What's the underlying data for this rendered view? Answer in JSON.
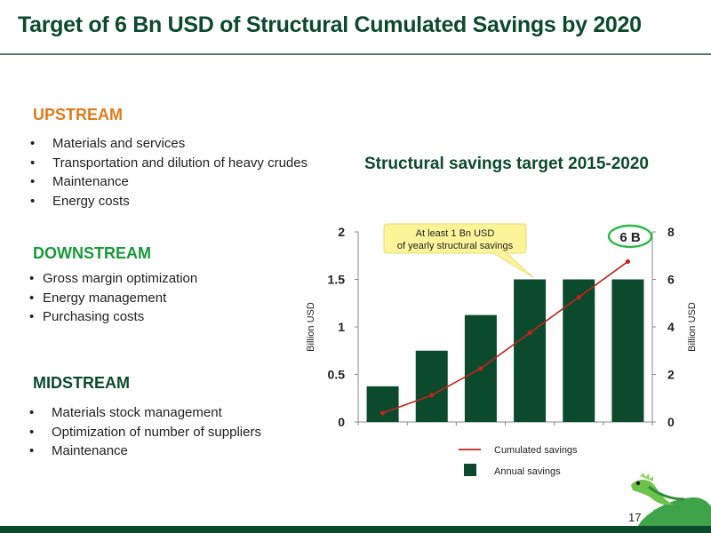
{
  "header": {
    "title": "Target of 6 Bn USD of Structural Cumulated Savings by 2020"
  },
  "sections": [
    {
      "heading": "UPSTREAM",
      "items": [
        "Materials and services",
        "Transportation and dilution of heavy crudes",
        "Maintenance",
        "Energy costs"
      ]
    },
    {
      "heading": "DOWNSTREAM",
      "items": [
        "Gross margin optimization",
        "Energy management",
        "Purchasing costs"
      ]
    },
    {
      "heading": "MIDSTREAM",
      "items": [
        "Materials stock management",
        "Optimization of number of suppliers",
        "Maintenance"
      ]
    }
  ],
  "chart_data": {
    "type": "bar",
    "title": "Structural savings target 2015-2020",
    "categories": [
      "",
      "",
      "",
      "",
      "",
      ""
    ],
    "series": [
      {
        "name": "Annual savings",
        "type": "bar",
        "axis": "left",
        "values": [
          0.375,
          0.75,
          1.125,
          1.5,
          1.5,
          1.5
        ]
      },
      {
        "name": "Cumulated savings",
        "type": "line",
        "axis": "right",
        "values": [
          0.375,
          1.125,
          2.25,
          3.75,
          5.25,
          6.75
        ]
      }
    ],
    "ylabel": "Billion USD",
    "ylim": [
      0,
      2
    ],
    "yticks": [
      "0",
      "0.5",
      "1",
      "1.5",
      "2"
    ],
    "y2label": "Billion USD",
    "y2lim": [
      0,
      8
    ],
    "y2ticks": [
      "0",
      "2",
      "4",
      "6",
      "8"
    ],
    "annotations": {
      "callout": "At least 1 Bn USD of yearly structural savings",
      "badge": "6 B"
    },
    "legend_position": "bottom",
    "grid": false
  },
  "colors": {
    "bar": "#0c4a2e",
    "line": "#c0241c",
    "title": "#0c4a2e",
    "upstream": "#e07b1a",
    "downstream": "#179a3a",
    "callout": "#fdf49a",
    "badge_ring": "#2eb84a"
  },
  "footer": {
    "page_number": "17"
  },
  "decor": {
    "mascot_icon": "iguana-icon"
  }
}
